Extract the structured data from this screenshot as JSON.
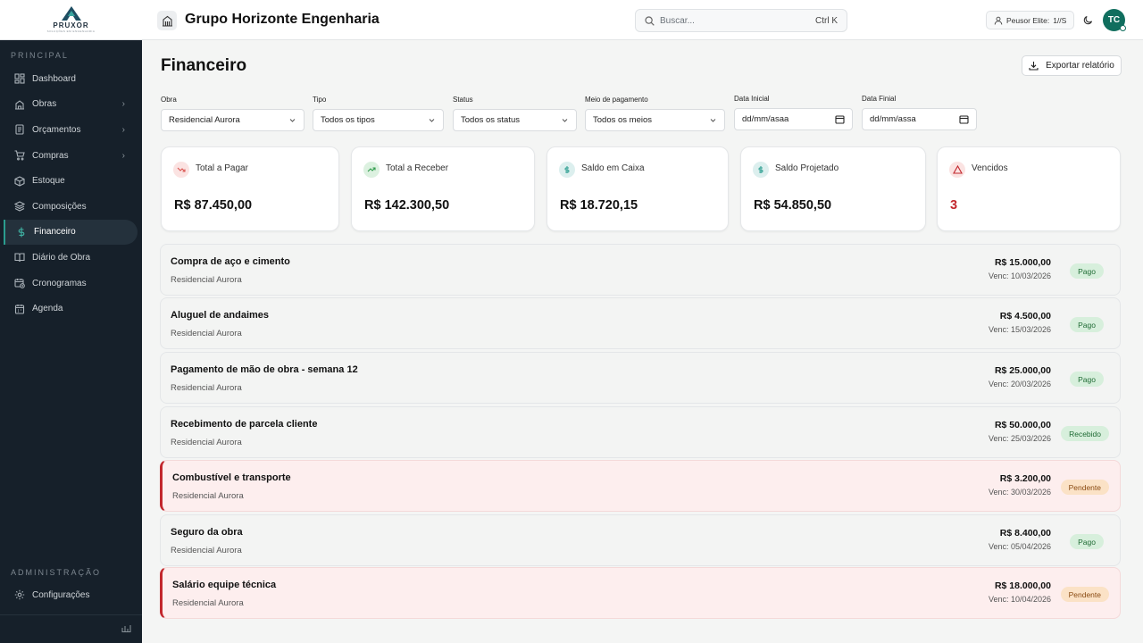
{
  "brand": {
    "name": "PRUXOR",
    "tagline": "SOLUÇÕES EM ENGENHARIA"
  },
  "sidebar": {
    "section_main": "PRINCIPAL",
    "items": [
      {
        "label": "Dashboard",
        "icon": "dashboard-icon",
        "has_children": false
      },
      {
        "label": "Obras",
        "icon": "building-icon",
        "has_children": true
      },
      {
        "label": "Orçamentos",
        "icon": "document-icon",
        "has_children": true
      },
      {
        "label": "Compras",
        "icon": "cart-icon",
        "has_children": true
      },
      {
        "label": "Estoque",
        "icon": "box-icon",
        "has_children": false
      },
      {
        "label": "Composições",
        "icon": "layers-icon",
        "has_children": false
      },
      {
        "label": "Financeiro",
        "icon": "dollar-icon",
        "has_children": false,
        "active": true
      },
      {
        "label": "Diário de Obra",
        "icon": "book-icon",
        "has_children": false
      },
      {
        "label": "Cronogramas",
        "icon": "calendar-clock-icon",
        "has_children": false
      },
      {
        "label": "Agenda",
        "icon": "calendar-icon",
        "has_children": false
      }
    ],
    "section_admin": "ADMINISTRAÇÃO",
    "config_label": "Configurações"
  },
  "header": {
    "org_name": "Grupo Horizonte Engenharia",
    "search_placeholder": "Buscar...",
    "search_shortcut": "Ctrl K",
    "plan_label": "Peusor Elite:",
    "plan_value": "1//S",
    "avatar_initials": "TC"
  },
  "page": {
    "title": "Financeiro",
    "export_label": "Exportar relatório"
  },
  "filters": {
    "obra": {
      "label": "Obra",
      "value": "Residencial Aurora"
    },
    "tipo": {
      "label": "Tipo",
      "value": "Todos os tipos"
    },
    "status": {
      "label": "Status",
      "value": "Todos os status"
    },
    "meio": {
      "label": "Meio de pagamento",
      "value": "Todos os meios"
    },
    "data_inicial": {
      "label": "Data Inicial",
      "placeholder": "dd/mm/asaa"
    },
    "data_final": {
      "label": "Data Finial",
      "placeholder": "dd/mm/assa"
    }
  },
  "cards": [
    {
      "label": "Total a Pagar",
      "value": "R$ 87.450,00",
      "icon": "trending-down-icon",
      "color": "#d9534f"
    },
    {
      "label": "Total a Receber",
      "value": "R$ 142.300,50",
      "icon": "trending-up-icon",
      "color": "#2e9a4a"
    },
    {
      "label": "Saldo em Caixa",
      "value": "R$ 18.720,15",
      "icon": "dollar-icon",
      "color": "#2a9d8f"
    },
    {
      "label": "Saldo Projetado",
      "value": "R$ 54.850,50",
      "icon": "dollar-icon",
      "color": "#2a9d8f"
    },
    {
      "label": "Vencidos",
      "value": "3",
      "icon": "alert-triangle-icon",
      "color": "#c2272d"
    }
  ],
  "transactions": [
    {
      "title": "Compra de aço e cimento",
      "project": "Residencial Aurora",
      "amount": "R$ 15.000,00",
      "due": "Venc: 10/03/2026",
      "status": "Pago",
      "overdue": false
    },
    {
      "title": "Aluguel de andaimes",
      "project": "Residencial Aurora",
      "amount": "R$ 4.500,00",
      "due": "Venc: 15/03/2026",
      "status": "Pago",
      "overdue": false
    },
    {
      "title": "Pagamento de mão de obra - semana 12",
      "project": "Residencial Aurora",
      "amount": "R$ 25.000,00",
      "due": "Venc: 20/03/2026",
      "status": "Pago",
      "overdue": false
    },
    {
      "title": "Recebimento de parcela cliente",
      "project": "Residencial Aurora",
      "amount": "R$ 50.000,00",
      "due": "Venc: 25/03/2026",
      "status": "Recebido",
      "overdue": false
    },
    {
      "title": "Combustível e transporte",
      "project": "Residencial Aurora",
      "amount": "R$ 3.200,00",
      "due": "Venc: 30/03/2026",
      "status": "Pendente",
      "overdue": true
    },
    {
      "title": "Seguro da obra",
      "project": "Residencial Aurora",
      "amount": "R$ 8.400,00",
      "due": "Venc: 05/04/2026",
      "status": "Pago",
      "overdue": false
    },
    {
      "title": "Salário equipe técnica",
      "project": "Residencial Aurora",
      "amount": "R$ 18.000,00",
      "due": "Venc: 10/04/2026",
      "status": "Pendente",
      "overdue": true
    }
  ]
}
